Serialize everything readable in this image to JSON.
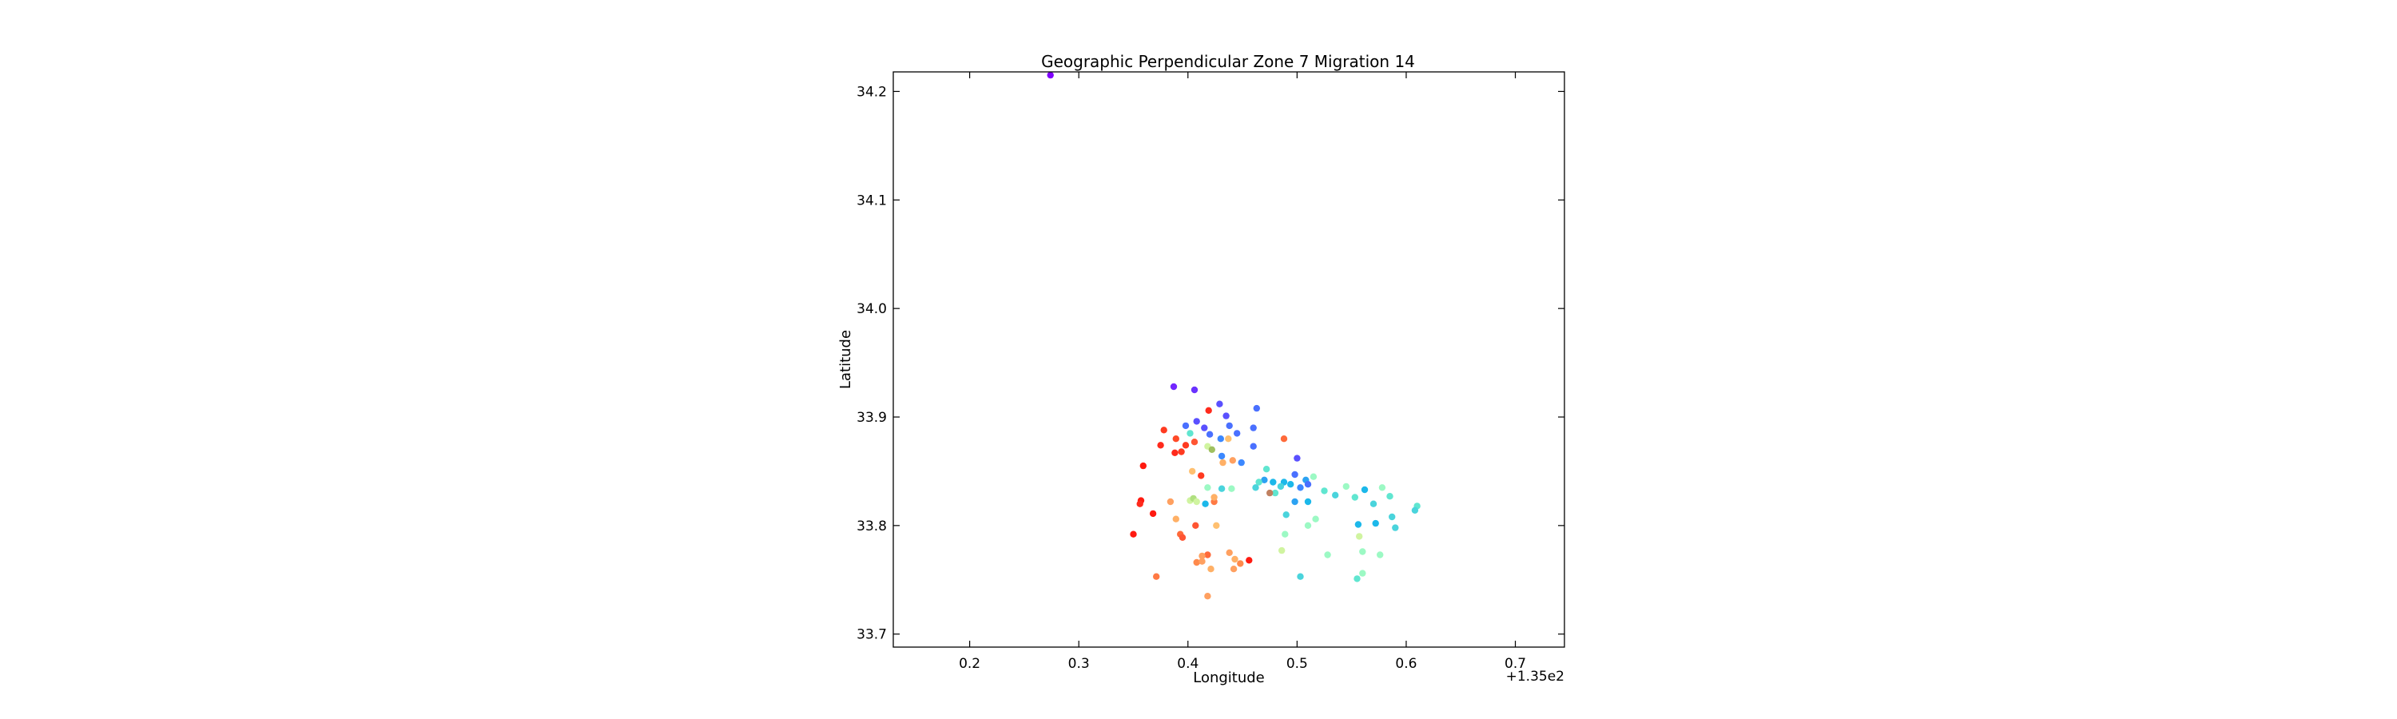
{
  "chart_data": {
    "type": "scatter",
    "title": "Geographic Perpendicular Zone 7 Migration 14",
    "xlabel": "Longitude",
    "ylabel": "Latitude",
    "x_offset_label": "+1.35e2",
    "xlim": [
      135.13,
      135.745
    ],
    "ylim": [
      33.688,
      34.218
    ],
    "xticks": [
      135.2,
      135.3,
      135.4,
      135.5,
      135.6,
      135.7
    ],
    "xtick_labels": [
      "0.2",
      "0.3",
      "0.4",
      "0.5",
      "0.6",
      "0.7"
    ],
    "yticks": [
      33.7,
      33.8,
      33.9,
      34.0,
      34.1,
      34.2
    ],
    "ytick_labels": [
      "33.7",
      "33.8",
      "33.9",
      "34.0",
      "34.1",
      "34.2"
    ],
    "grid": false,
    "legend": "none",
    "points": [
      {
        "x": 135.274,
        "y": 34.215,
        "c": "#8000ff"
      },
      {
        "x": 135.387,
        "y": 33.928,
        "c": "#7326ff"
      },
      {
        "x": 135.406,
        "y": 33.925,
        "c": "#6a32ff"
      },
      {
        "x": 135.429,
        "y": 33.912,
        "c": "#5a50ff"
      },
      {
        "x": 135.463,
        "y": 33.908,
        "c": "#4a70ff"
      },
      {
        "x": 135.435,
        "y": 33.901,
        "c": "#5a50ff"
      },
      {
        "x": 135.408,
        "y": 33.896,
        "c": "#5a50ff"
      },
      {
        "x": 135.398,
        "y": 33.892,
        "c": "#4a70ff"
      },
      {
        "x": 135.415,
        "y": 33.89,
        "c": "#5a50ff"
      },
      {
        "x": 135.438,
        "y": 33.892,
        "c": "#4a70ff"
      },
      {
        "x": 135.46,
        "y": 33.89,
        "c": "#4a70ff"
      },
      {
        "x": 135.42,
        "y": 33.884,
        "c": "#4a70ff"
      },
      {
        "x": 135.445,
        "y": 33.885,
        "c": "#4a70ff"
      },
      {
        "x": 135.43,
        "y": 33.88,
        "c": "#3c88ff"
      },
      {
        "x": 135.46,
        "y": 33.873,
        "c": "#4a70ff"
      },
      {
        "x": 135.431,
        "y": 33.864,
        "c": "#3c88ff"
      },
      {
        "x": 135.449,
        "y": 33.858,
        "c": "#3c88ff"
      },
      {
        "x": 135.5,
        "y": 33.862,
        "c": "#5a50ff"
      },
      {
        "x": 135.498,
        "y": 33.847,
        "c": "#4a70ff"
      },
      {
        "x": 135.47,
        "y": 33.842,
        "c": "#2ca2f2"
      },
      {
        "x": 135.478,
        "y": 33.84,
        "c": "#1cb8ea"
      },
      {
        "x": 135.488,
        "y": 33.84,
        "c": "#1cb8ea"
      },
      {
        "x": 135.494,
        "y": 33.838,
        "c": "#1cb8ea"
      },
      {
        "x": 135.508,
        "y": 33.842,
        "c": "#2ca2f2"
      },
      {
        "x": 135.503,
        "y": 33.835,
        "c": "#3c88ff"
      },
      {
        "x": 135.51,
        "y": 33.838,
        "c": "#4a70ff"
      },
      {
        "x": 135.515,
        "y": 33.845,
        "c": "#9cf9c4"
      },
      {
        "x": 135.465,
        "y": 33.84,
        "c": "#60e6d0"
      },
      {
        "x": 135.462,
        "y": 33.835,
        "c": "#4ad4dc"
      },
      {
        "x": 135.472,
        "y": 33.852,
        "c": "#60e6d0"
      },
      {
        "x": 135.48,
        "y": 33.83,
        "c": "#60e6d0"
      },
      {
        "x": 135.485,
        "y": 33.836,
        "c": "#4ad4dc"
      },
      {
        "x": 135.498,
        "y": 33.822,
        "c": "#2ca2f2"
      },
      {
        "x": 135.51,
        "y": 33.822,
        "c": "#1cb8ea"
      },
      {
        "x": 135.525,
        "y": 33.832,
        "c": "#60e6d0"
      },
      {
        "x": 135.535,
        "y": 33.828,
        "c": "#4ad4dc"
      },
      {
        "x": 135.545,
        "y": 33.836,
        "c": "#9cf9c4"
      },
      {
        "x": 135.553,
        "y": 33.826,
        "c": "#60e6d0"
      },
      {
        "x": 135.562,
        "y": 33.833,
        "c": "#1cb8ea"
      },
      {
        "x": 135.57,
        "y": 33.82,
        "c": "#4ad4dc"
      },
      {
        "x": 135.578,
        "y": 33.835,
        "c": "#9cf9c4"
      },
      {
        "x": 135.585,
        "y": 33.827,
        "c": "#60e6d0"
      },
      {
        "x": 135.61,
        "y": 33.818,
        "c": "#60e6d0"
      },
      {
        "x": 135.608,
        "y": 33.814,
        "c": "#4ad4dc"
      },
      {
        "x": 135.587,
        "y": 33.808,
        "c": "#4ad4dc"
      },
      {
        "x": 135.572,
        "y": 33.802,
        "c": "#1cb8ea"
      },
      {
        "x": 135.556,
        "y": 33.801,
        "c": "#1cb8ea"
      },
      {
        "x": 135.59,
        "y": 33.798,
        "c": "#4ad4dc"
      },
      {
        "x": 135.557,
        "y": 33.79,
        "c": "#d0f4a0"
      },
      {
        "x": 135.517,
        "y": 33.806,
        "c": "#9cf9c4"
      },
      {
        "x": 135.51,
        "y": 33.8,
        "c": "#9cf9c4"
      },
      {
        "x": 135.49,
        "y": 33.81,
        "c": "#4ad4dc"
      },
      {
        "x": 135.489,
        "y": 33.792,
        "c": "#9cf9c4"
      },
      {
        "x": 135.486,
        "y": 33.777,
        "c": "#d0f4a0"
      },
      {
        "x": 135.528,
        "y": 33.773,
        "c": "#9cf9c4"
      },
      {
        "x": 135.56,
        "y": 33.776,
        "c": "#9cf9c4"
      },
      {
        "x": 135.576,
        "y": 33.773,
        "c": "#9cf9c4"
      },
      {
        "x": 135.56,
        "y": 33.756,
        "c": "#9cf9c4"
      },
      {
        "x": 135.555,
        "y": 33.751,
        "c": "#60e6d0"
      },
      {
        "x": 135.503,
        "y": 33.753,
        "c": "#4ad4dc"
      },
      {
        "x": 135.419,
        "y": 33.906,
        "c": "#ff2a1c"
      },
      {
        "x": 135.378,
        "y": 33.888,
        "c": "#ff3a20"
      },
      {
        "x": 135.389,
        "y": 33.88,
        "c": "#ff4a28"
      },
      {
        "x": 135.398,
        "y": 33.874,
        "c": "#ff3a20"
      },
      {
        "x": 135.406,
        "y": 33.877,
        "c": "#ff5533"
      },
      {
        "x": 135.375,
        "y": 33.874,
        "c": "#ff2a1c"
      },
      {
        "x": 135.388,
        "y": 33.867,
        "c": "#ff2a1c"
      },
      {
        "x": 135.394,
        "y": 33.868,
        "c": "#ff3a20"
      },
      {
        "x": 135.402,
        "y": 33.885,
        "c": "#60e6d0"
      },
      {
        "x": 135.418,
        "y": 33.873,
        "c": "#d0f4a0"
      },
      {
        "x": 135.422,
        "y": 33.87,
        "c": "#a0c060"
      },
      {
        "x": 135.437,
        "y": 33.88,
        "c": "#ffc070"
      },
      {
        "x": 135.441,
        "y": 33.86,
        "c": "#ffa060"
      },
      {
        "x": 135.432,
        "y": 33.858,
        "c": "#ffb066"
      },
      {
        "x": 135.404,
        "y": 33.85,
        "c": "#ffc070"
      },
      {
        "x": 135.412,
        "y": 33.846,
        "c": "#ff3a20"
      },
      {
        "x": 135.359,
        "y": 33.855,
        "c": "#ff1a10"
      },
      {
        "x": 135.488,
        "y": 33.88,
        "c": "#ff6a3a"
      },
      {
        "x": 135.475,
        "y": 33.83,
        "c": "#c08060"
      },
      {
        "x": 135.357,
        "y": 33.823,
        "c": "#ff1a10"
      },
      {
        "x": 135.356,
        "y": 33.82,
        "c": "#ff2a1c"
      },
      {
        "x": 135.368,
        "y": 33.811,
        "c": "#ff1a10"
      },
      {
        "x": 135.35,
        "y": 33.792,
        "c": "#ff1a10"
      },
      {
        "x": 135.384,
        "y": 33.822,
        "c": "#ffa060"
      },
      {
        "x": 135.402,
        "y": 33.823,
        "c": "#d0f4a0"
      },
      {
        "x": 135.405,
        "y": 33.825,
        "c": "#b0e080"
      },
      {
        "x": 135.408,
        "y": 33.822,
        "c": "#d0f4a0"
      },
      {
        "x": 135.416,
        "y": 33.82,
        "c": "#1cb8ea"
      },
      {
        "x": 135.424,
        "y": 33.822,
        "c": "#ff7a44"
      },
      {
        "x": 135.424,
        "y": 33.826,
        "c": "#ffb066"
      },
      {
        "x": 135.431,
        "y": 33.834,
        "c": "#4ad4dc"
      },
      {
        "x": 135.44,
        "y": 33.834,
        "c": "#9cf9c4"
      },
      {
        "x": 135.418,
        "y": 33.835,
        "c": "#9cf9c4"
      },
      {
        "x": 135.389,
        "y": 33.806,
        "c": "#ffb066"
      },
      {
        "x": 135.407,
        "y": 33.8,
        "c": "#ff5533"
      },
      {
        "x": 135.426,
        "y": 33.8,
        "c": "#ffc070"
      },
      {
        "x": 135.393,
        "y": 33.792,
        "c": "#ff6a3a"
      },
      {
        "x": 135.395,
        "y": 33.789,
        "c": "#ff5533"
      },
      {
        "x": 135.438,
        "y": 33.775,
        "c": "#ffa060"
      },
      {
        "x": 135.418,
        "y": 33.773,
        "c": "#ff6a3a"
      },
      {
        "x": 135.413,
        "y": 33.772,
        "c": "#ffa060"
      },
      {
        "x": 135.408,
        "y": 33.766,
        "c": "#ff8a4c"
      },
      {
        "x": 135.413,
        "y": 33.767,
        "c": "#ffa060"
      },
      {
        "x": 135.443,
        "y": 33.769,
        "c": "#ffb066"
      },
      {
        "x": 135.448,
        "y": 33.765,
        "c": "#ff8a4c"
      },
      {
        "x": 135.456,
        "y": 33.768,
        "c": "#ff1a10"
      },
      {
        "x": 135.442,
        "y": 33.76,
        "c": "#ffa060"
      },
      {
        "x": 135.421,
        "y": 33.76,
        "c": "#ffb066"
      },
      {
        "x": 135.371,
        "y": 33.753,
        "c": "#ff7a44"
      },
      {
        "x": 135.418,
        "y": 33.735,
        "c": "#ffa060"
      }
    ]
  }
}
